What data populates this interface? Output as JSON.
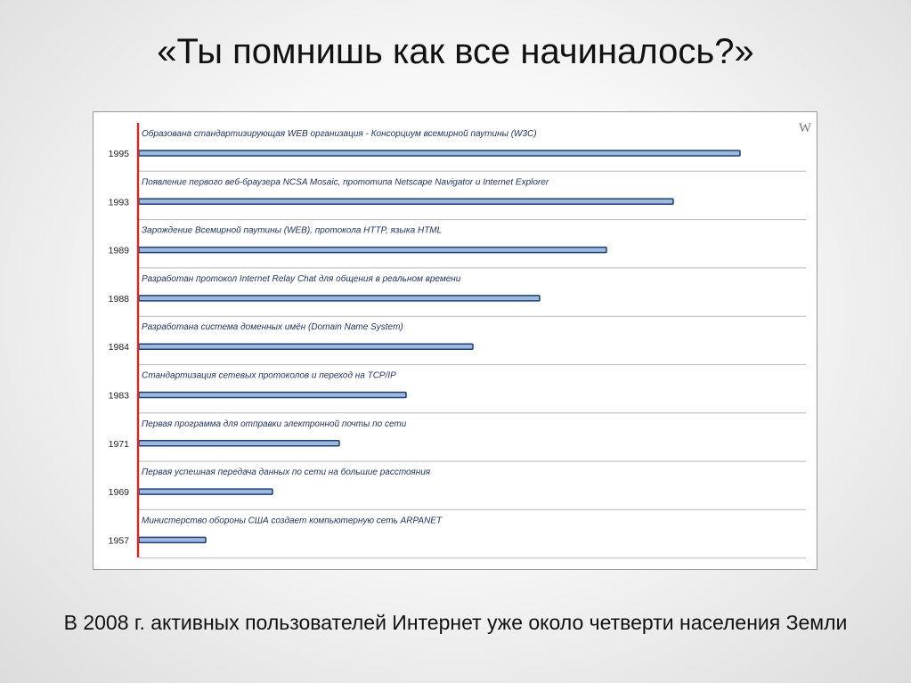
{
  "slide": {
    "title": "«Ты помнишь как все начиналось?»",
    "footer": "В 2008 г. активных пользователей Интернет уже около четверти населения Земли"
  },
  "colors": {
    "bar_fill": "#9db9dd",
    "bar_border": "#1f3f73",
    "axis_line": "#cc2b2b",
    "row_divider": "#b8b8b8"
  },
  "chart_data": {
    "type": "bar",
    "orientation": "horizontal",
    "watermark": "W",
    "title": "",
    "xlabel": "",
    "ylabel": "",
    "grid": true,
    "categories": [
      "1995",
      "1993",
      "1989",
      "1988",
      "1984",
      "1983",
      "1971",
      "1969",
      "1957"
    ],
    "labels": [
      "Образована стандартизирующая WEB организация - Консорциум всемирной паутины (W3C)",
      "Появление первого веб-браузера NCSA Mosaic, прототипа Netscape Navigator и Internet Explorer",
      "Зарождение Всемирной паутины (WEB), протокола HTTP, языка HTML",
      "Разработан протокол Internet Relay Chat для общения в реальном времени",
      "Разработана система доменных имён (Domain Name System)",
      "Стандартизация сетевых протоколов и переход на TCP/IP",
      "Первая программа для отправки электронной почты по сети",
      "Первая успешная передача данных по сети на большие расстояния",
      "Министерство обороны США создает компьютерную сеть ARPANET"
    ],
    "values": [
      9,
      8,
      7,
      6,
      5,
      4,
      3,
      2,
      1
    ],
    "xlim": [
      0,
      10
    ]
  }
}
